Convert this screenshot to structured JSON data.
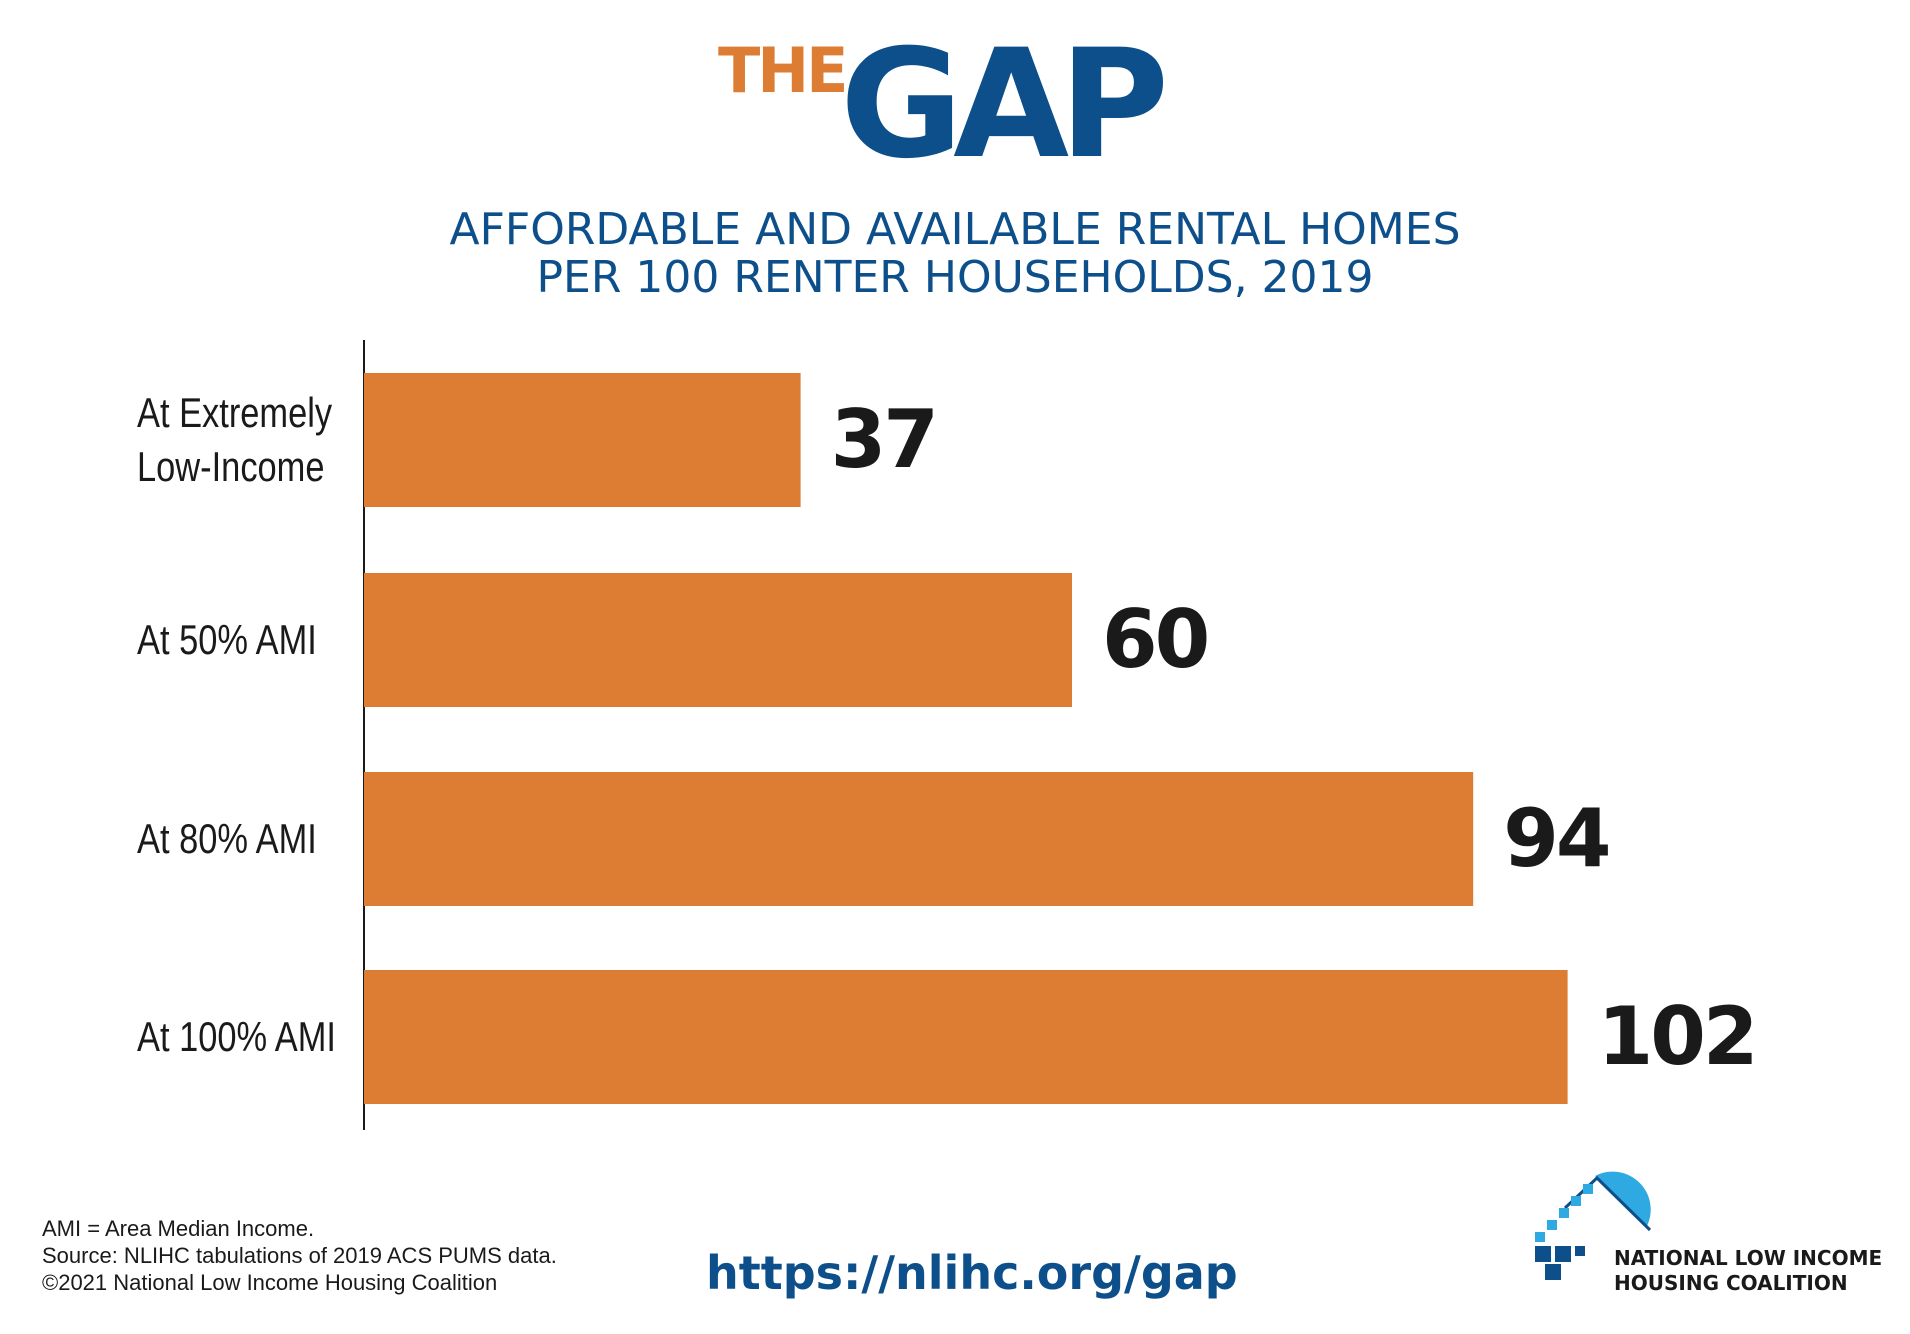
{
  "header": {
    "logo_the": "THE",
    "logo_gap": "GAP",
    "subtitle_line1": "AFFORDABLE AND AVAILABLE RENTAL HOMES",
    "subtitle_line2": "PER 100 RENTER HOUSEHOLDS, 2019"
  },
  "colors": {
    "bar": "#DD7D33",
    "brand_blue": "#0D4F8B",
    "brand_orange": "#DD7D33",
    "value_text": "#1a1a1a",
    "logo_light_blue": "#2FA9E1"
  },
  "chart_data": {
    "type": "bar",
    "orientation": "horizontal",
    "categories": [
      "At Extremely Low-Income",
      "At 50% AMI",
      "At 80% AMI",
      "At 100% AMI"
    ],
    "category_lines": [
      [
        "At Extremely",
        "Low-Income"
      ],
      [
        "At 50% AMI"
      ],
      [
        "At 80% AMI"
      ],
      [
        "At 100% AMI"
      ]
    ],
    "values": [
      37,
      60,
      94,
      102
    ],
    "data_labels": [
      "37",
      "60",
      "94",
      "102"
    ],
    "xlim": [
      0,
      110
    ],
    "grid": false
  },
  "footer": {
    "note1": "AMI = Area Median Income.",
    "note2": "Source: NLIHC tabulations of 2019 ACS PUMS data.",
    "note3": "©2021 National Low Income Housing Coalition",
    "url": "https://nlihc.org/gap",
    "org_line1": "NATIONAL LOW INCOME",
    "org_line2": "HOUSING COALITION"
  }
}
